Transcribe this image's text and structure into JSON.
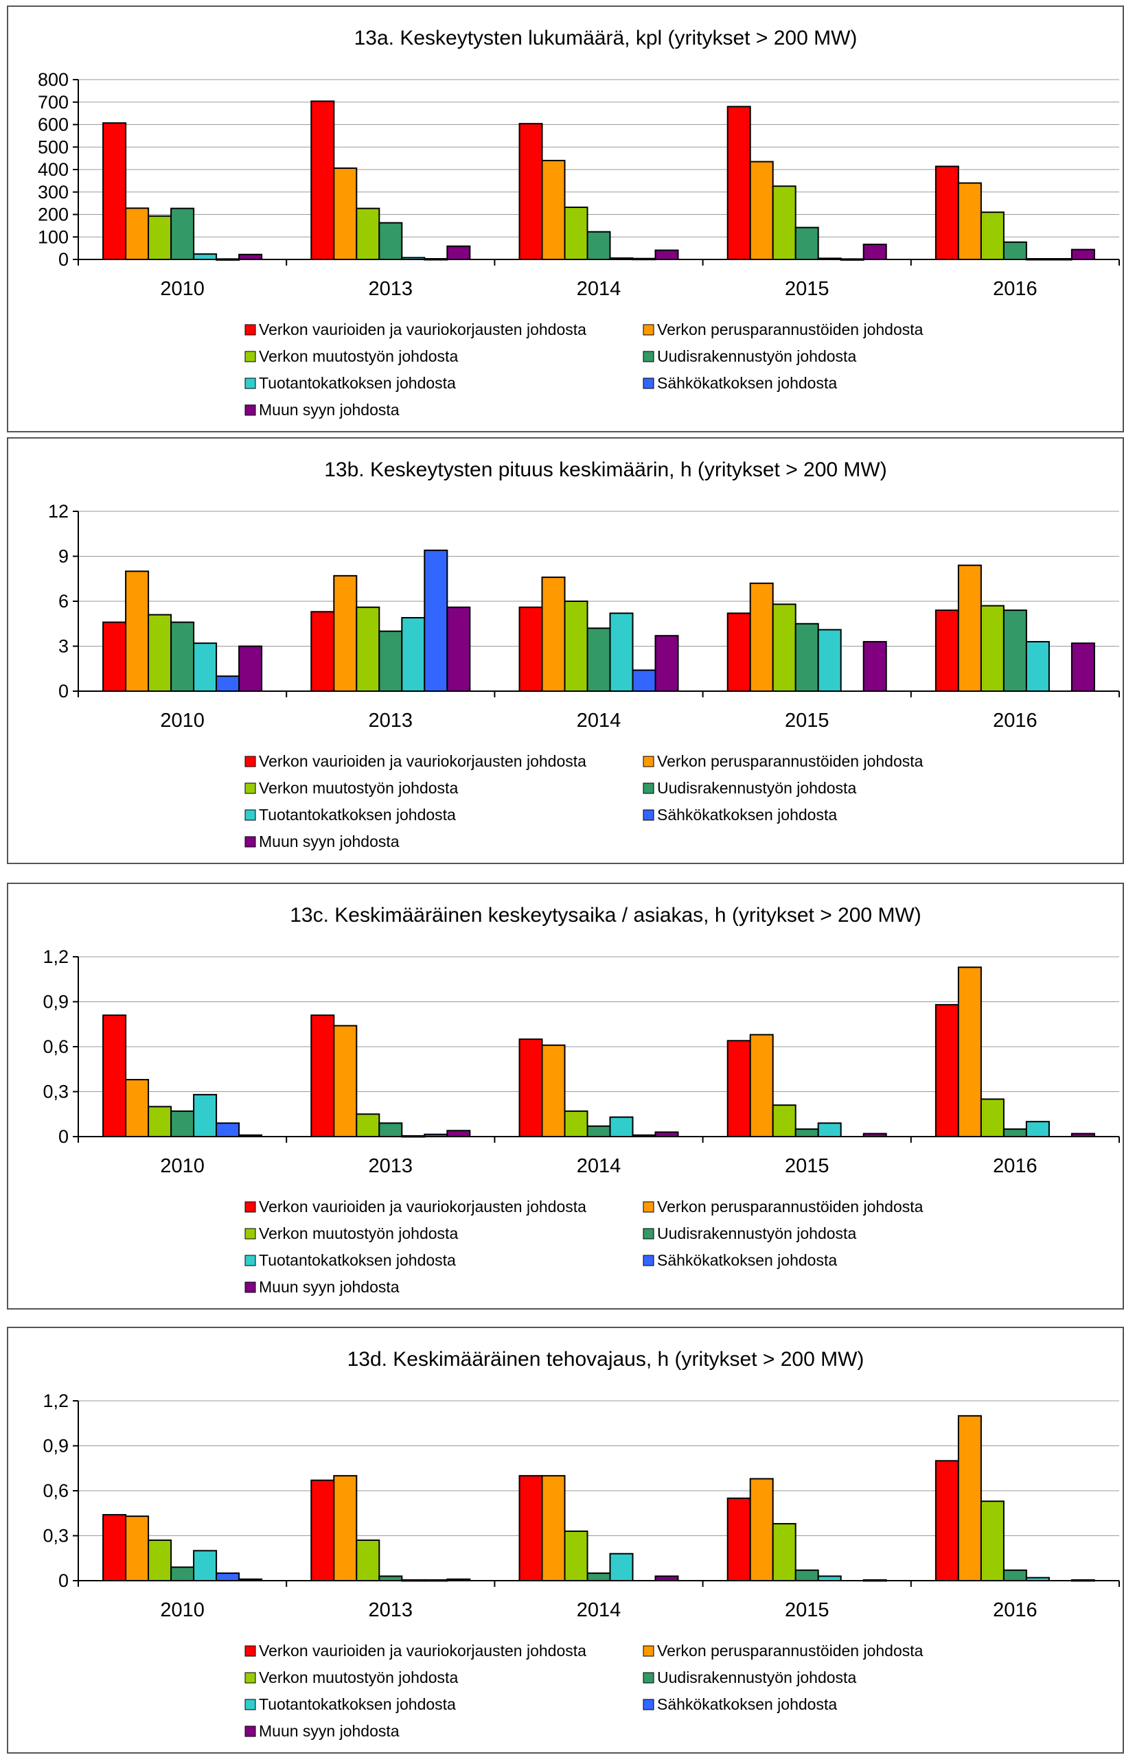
{
  "colors": [
    "#ff0000",
    "#ff9900",
    "#99cc00",
    "#339966",
    "#33cccc",
    "#3366ff",
    "#800080"
  ],
  "legend": [
    "Verkon vaurioiden ja vauriokorjausten johdosta",
    "Verkon perusparannustöiden johdosta",
    "Verkon muutostyön johdosta",
    "Uudisrakennustyön johdosta",
    "Tuotantokatkoksen johdosta",
    "Sähkökatkoksen johdosta",
    "Muun syyn johdosta"
  ],
  "chart_data": [
    {
      "type": "bar",
      "title": "13a. Keskeytysten lukumäärä, kpl (yritykset > 200 MW)",
      "categories": [
        "2010",
        "2013",
        "2014",
        "2015",
        "2016"
      ],
      "ylim": [
        0,
        800
      ],
      "yticks": [
        "0",
        "100",
        "200",
        "300",
        "400",
        "500",
        "600",
        "700",
        "800"
      ],
      "grid": true,
      "legend_position": "bottom",
      "series": [
        {
          "name": "Verkon vaurioiden ja vauriokorjausten johdosta",
          "values": [
            607,
            704,
            604,
            680,
            414
          ]
        },
        {
          "name": "Verkon perusparannustöiden johdosta",
          "values": [
            228,
            406,
            440,
            435,
            340
          ]
        },
        {
          "name": "Verkon muutostyön johdosta",
          "values": [
            193,
            227,
            232,
            326,
            210
          ]
        },
        {
          "name": "Uudisrakennustyön johdosta",
          "values": [
            227,
            163,
            123,
            142,
            77
          ]
        },
        {
          "name": "Tuotantokatkoksen johdosta",
          "values": [
            24,
            8,
            6,
            5,
            3
          ]
        },
        {
          "name": "Sähkökatkoksen johdosta",
          "values": [
            2,
            3,
            4,
            2,
            3
          ]
        },
        {
          "name": "Muun syyn johdosta",
          "values": [
            22,
            59,
            41,
            67,
            44
          ]
        }
      ]
    },
    {
      "type": "bar",
      "title": "13b. Keskeytysten pituus keskimäärin, h (yritykset > 200 MW)",
      "categories": [
        "2010",
        "2013",
        "2014",
        "2015",
        "2016"
      ],
      "ylim": [
        0,
        12
      ],
      "yticks": [
        "0",
        "3",
        "6",
        "9",
        "12"
      ],
      "grid": true,
      "legend_position": "bottom",
      "series": [
        {
          "name": "Verkon vaurioiden ja vauriokorjausten johdosta",
          "values": [
            4.6,
            5.3,
            5.6,
            5.2,
            5.4
          ]
        },
        {
          "name": "Verkon perusparannustöiden johdosta",
          "values": [
            8.0,
            7.7,
            7.6,
            7.2,
            8.4
          ]
        },
        {
          "name": "Verkon muutostyön johdosta",
          "values": [
            5.1,
            5.6,
            6.0,
            5.8,
            5.7
          ]
        },
        {
          "name": "Uudisrakennustyön johdosta",
          "values": [
            4.6,
            4.0,
            4.2,
            4.5,
            5.4
          ]
        },
        {
          "name": "Tuotantokatkoksen johdosta",
          "values": [
            3.2,
            4.9,
            5.2,
            4.1,
            3.3
          ]
        },
        {
          "name": "Sähkökatkoksen johdosta",
          "values": [
            1.0,
            9.4,
            1.4,
            0,
            0
          ]
        },
        {
          "name": "Muun syyn johdosta",
          "values": [
            3.0,
            5.6,
            3.7,
            3.3,
            3.2
          ]
        }
      ]
    },
    {
      "type": "bar",
      "title": "13c. Keskimääräinen keskeytysaika / asiakas, h (yritykset > 200 MW)",
      "categories": [
        "2010",
        "2013",
        "2014",
        "2015",
        "2016"
      ],
      "ylim": [
        0,
        1.2
      ],
      "yticks": [
        "0",
        "0,3",
        "0,6",
        "0,9",
        "1,2"
      ],
      "grid": true,
      "legend_position": "bottom",
      "series": [
        {
          "name": "Verkon vaurioiden ja vauriokorjausten johdosta",
          "values": [
            0.81,
            0.81,
            0.65,
            0.64,
            0.88
          ]
        },
        {
          "name": "Verkon perusparannustöiden johdosta",
          "values": [
            0.38,
            0.74,
            0.61,
            0.68,
            1.13
          ]
        },
        {
          "name": "Verkon muutostyön johdosta",
          "values": [
            0.2,
            0.15,
            0.17,
            0.21,
            0.25
          ]
        },
        {
          "name": "Uudisrakennustyön johdosta",
          "values": [
            0.17,
            0.09,
            0.07,
            0.05,
            0.05
          ]
        },
        {
          "name": "Tuotantokatkoksen johdosta",
          "values": [
            0.28,
            0.005,
            0.13,
            0.09,
            0.1
          ]
        },
        {
          "name": "Sähkökatkoksen johdosta",
          "values": [
            0.09,
            0.015,
            0.01,
            0,
            0
          ]
        },
        {
          "name": "Muun syyn johdosta",
          "values": [
            0.01,
            0.04,
            0.03,
            0.02,
            0.02
          ]
        }
      ]
    },
    {
      "type": "bar",
      "title": "13d. Keskimääräinen tehovajaus, h (yritykset > 200 MW)",
      "categories": [
        "2010",
        "2013",
        "2014",
        "2015",
        "2016"
      ],
      "ylim": [
        0,
        1.2
      ],
      "yticks": [
        "0",
        "0,3",
        "0,6",
        "0,9",
        "1,2"
      ],
      "grid": true,
      "legend_position": "bottom",
      "series": [
        {
          "name": "Verkon vaurioiden ja vauriokorjausten johdosta",
          "values": [
            0.44,
            0.67,
            0.7,
            0.55,
            0.8
          ]
        },
        {
          "name": "Verkon perusparannustöiden johdosta",
          "values": [
            0.43,
            0.7,
            0.7,
            0.68,
            1.1
          ]
        },
        {
          "name": "Verkon muutostyön johdosta",
          "values": [
            0.27,
            0.27,
            0.33,
            0.38,
            0.53
          ]
        },
        {
          "name": "Uudisrakennustyön johdosta",
          "values": [
            0.09,
            0.03,
            0.05,
            0.07,
            0.07
          ]
        },
        {
          "name": "Tuotantokatkoksen johdosta",
          "values": [
            0.2,
            0.005,
            0.18,
            0.03,
            0.02
          ]
        },
        {
          "name": "Sähkökatkoksen johdosta",
          "values": [
            0.05,
            0.005,
            0,
            0,
            0
          ]
        },
        {
          "name": "Muun syyn johdosta",
          "values": [
            0.01,
            0.01,
            0.03,
            0.005,
            0.005
          ]
        }
      ]
    }
  ]
}
